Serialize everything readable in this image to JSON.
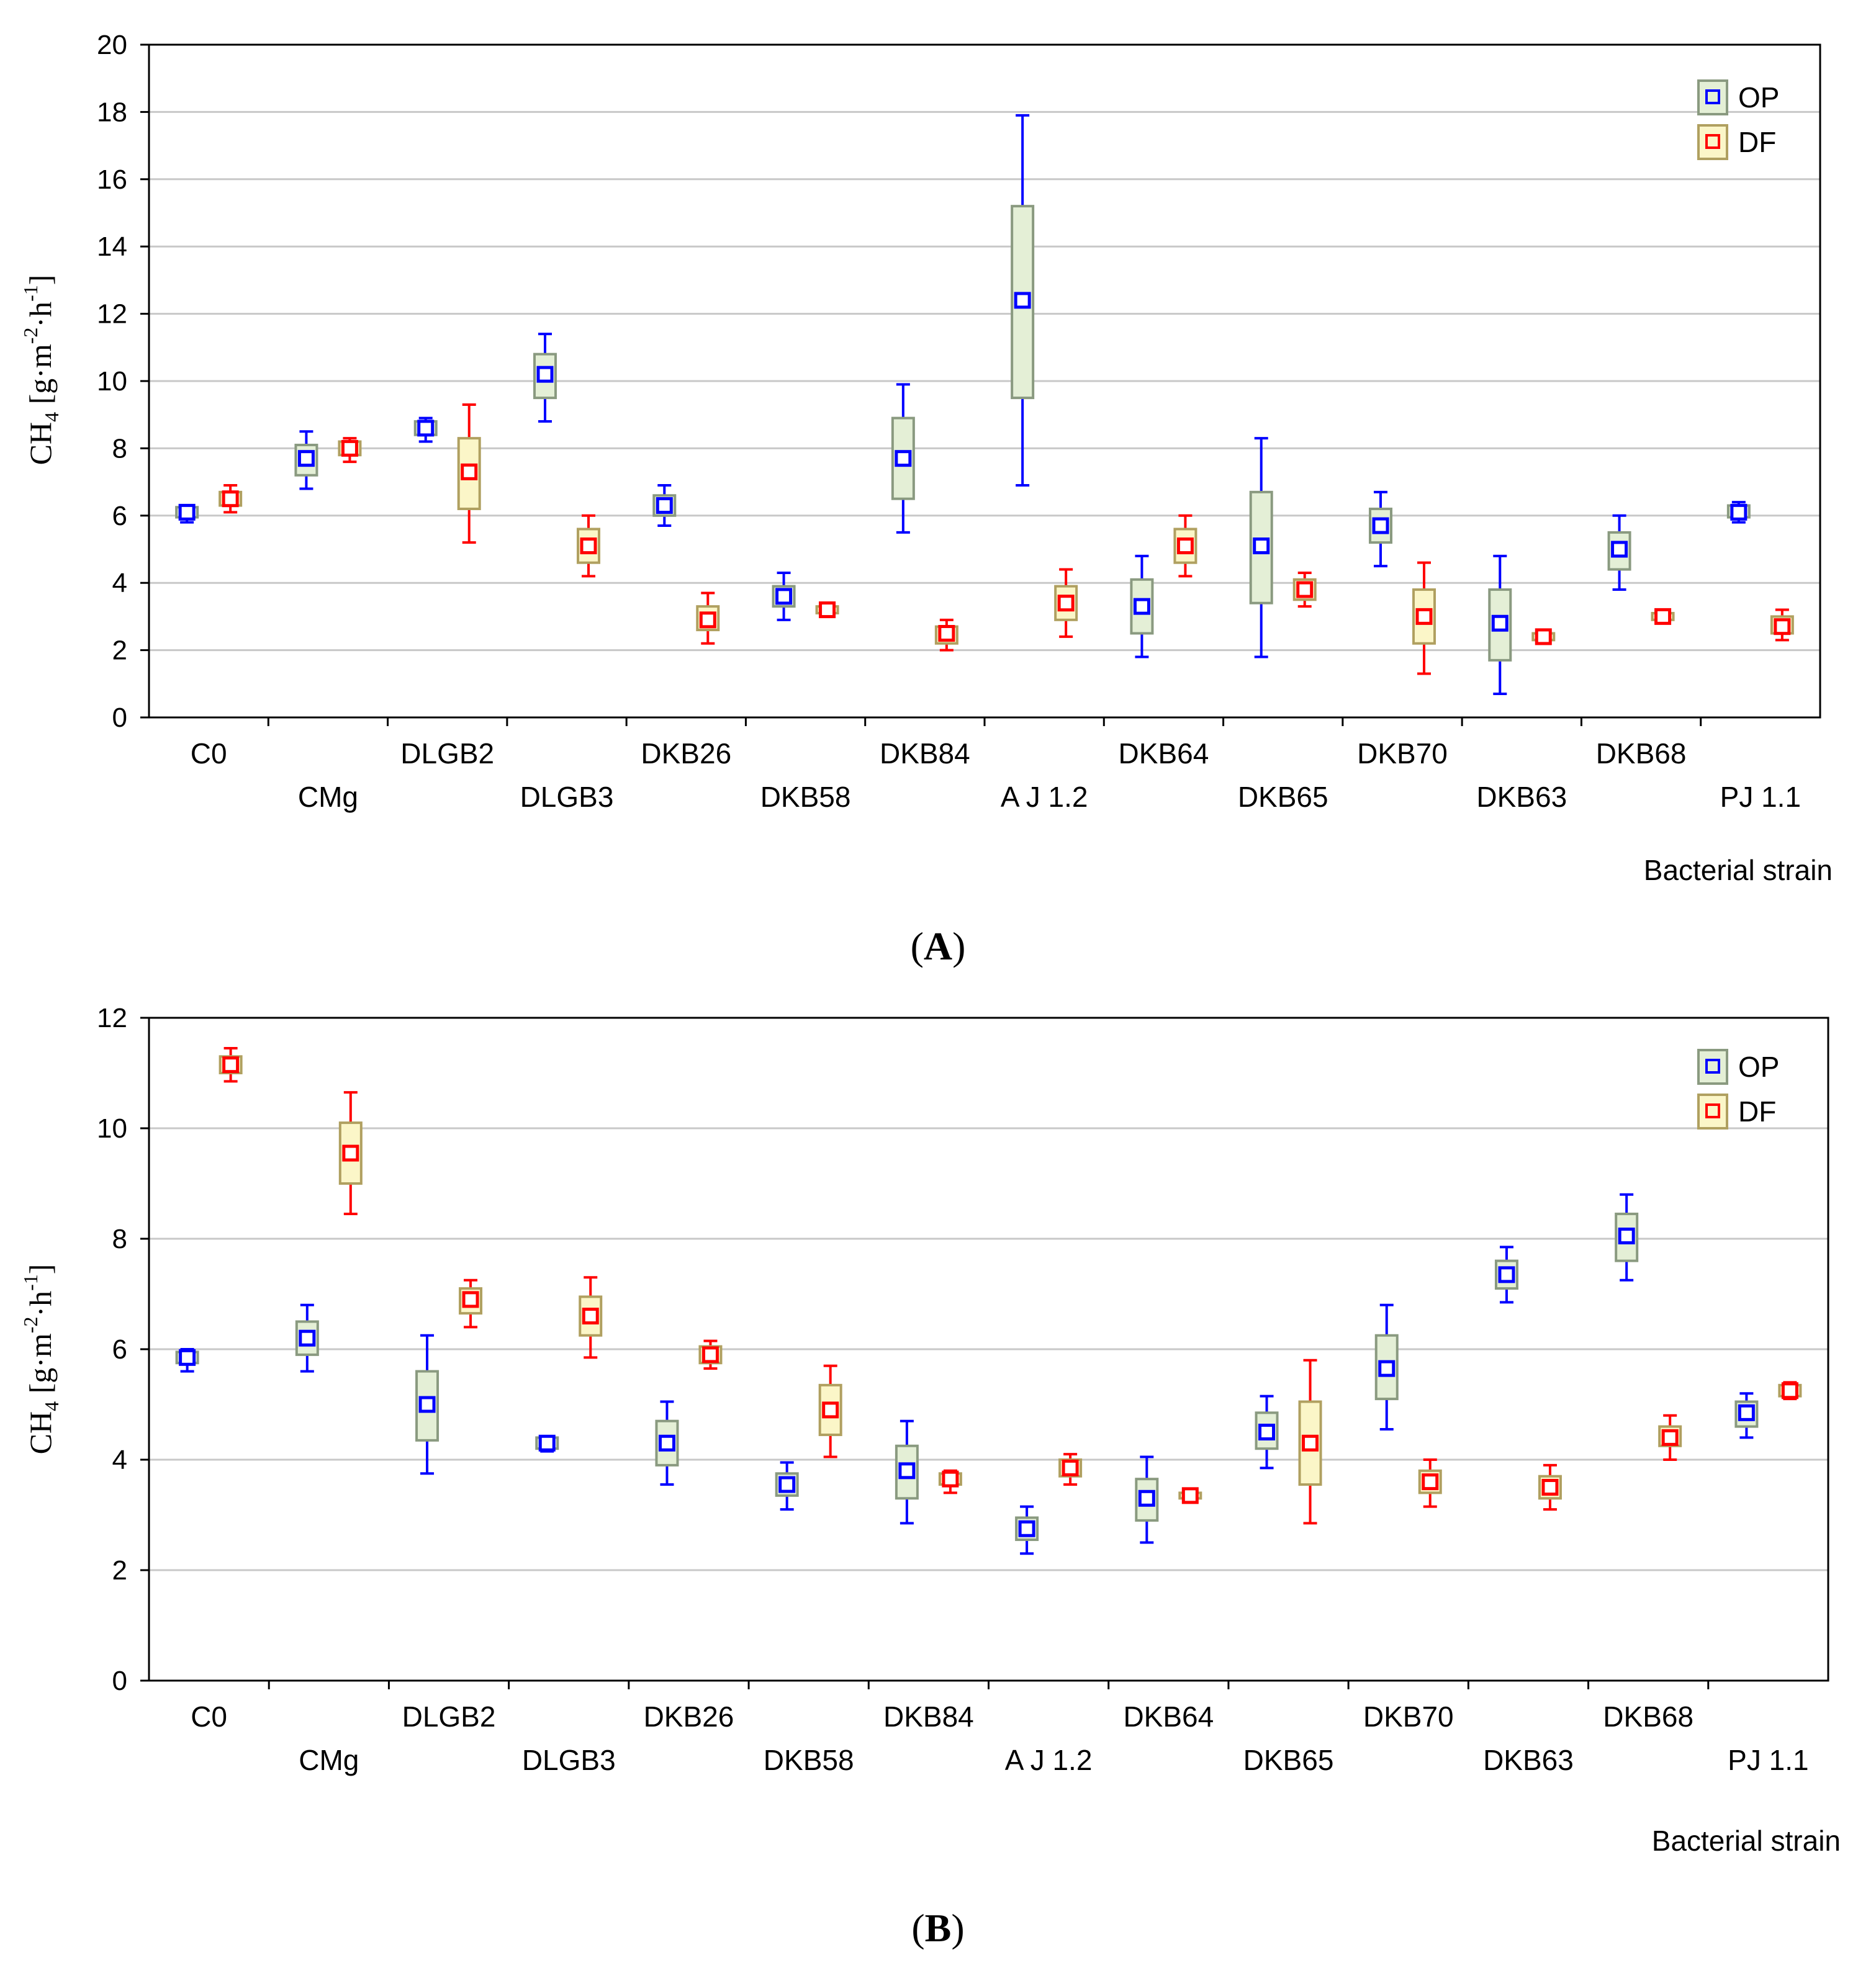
{
  "figure": {
    "panels": [
      {
        "label_open": "(",
        "label_letter": "A",
        "label_close": ")"
      },
      {
        "label_open": "(",
        "label_letter": "B",
        "label_close": ")"
      }
    ]
  },
  "legend": {
    "op": {
      "label": "OP",
      "color": "#0000ff",
      "box_fill": "#e4efd6",
      "box_stroke": "#8a9a80"
    },
    "df": {
      "label": "DF",
      "color": "#ff0000",
      "box_fill": "#fbf6c8",
      "box_stroke": "#b0a060"
    }
  },
  "chart_data": [
    {
      "type": "box",
      "panel": "A",
      "ylabel": "CH4 [g·m-2·h-1]",
      "ylabel_main": "CH",
      "ylabel_sub": "4",
      "ylabel_rest1": " [g·m",
      "ylabel_sup1": "-2",
      "ylabel_rest2": "·h",
      "ylabel_sup2": "-1",
      "ylabel_rest3": "]",
      "xlabel": "Bacterial strain",
      "ylim": [
        0,
        20
      ],
      "yticks": [
        "0",
        "2",
        "4",
        "6",
        "8",
        "10",
        "12",
        "14",
        "16",
        "18",
        "20"
      ],
      "grid": true,
      "legend_position": "top-right",
      "categories": [
        "C0",
        "CMg",
        "DLGB2",
        "DLGB3",
        "DKB26",
        "DKB58",
        "DKB84",
        "A J 1.2",
        "DKB64",
        "DKB65",
        "DKB70",
        "DKB63",
        "DKB68",
        "PJ 1.1"
      ],
      "series": [
        {
          "name": "OP",
          "points": [
            {
              "x": 0,
              "mean": 6.1,
              "q1": 5.95,
              "q3": 6.25,
              "min": 5.8,
              "max": 6.3
            },
            {
              "x": 1,
              "mean": 7.7,
              "q1": 7.2,
              "q3": 8.1,
              "min": 6.8,
              "max": 8.5
            },
            {
              "x": 2,
              "mean": 8.6,
              "q1": 8.4,
              "q3": 8.8,
              "min": 8.2,
              "max": 8.9
            },
            {
              "x": 3,
              "mean": 10.2,
              "q1": 9.5,
              "q3": 10.8,
              "min": 8.8,
              "max": 11.4
            },
            {
              "x": 4,
              "mean": 6.3,
              "q1": 6.0,
              "q3": 6.6,
              "min": 5.7,
              "max": 6.9
            },
            {
              "x": 5,
              "mean": 3.6,
              "q1": 3.3,
              "q3": 3.9,
              "min": 2.9,
              "max": 4.3
            },
            {
              "x": 6,
              "mean": 7.7,
              "q1": 6.5,
              "q3": 8.9,
              "min": 5.5,
              "max": 9.9
            },
            {
              "x": 7,
              "mean": 12.4,
              "q1": 9.5,
              "q3": 15.2,
              "min": 6.9,
              "max": 17.9
            },
            {
              "x": 8,
              "mean": 3.3,
              "q1": 2.5,
              "q3": 4.1,
              "min": 1.8,
              "max": 4.8
            },
            {
              "x": 9,
              "mean": 5.1,
              "q1": 3.4,
              "q3": 6.7,
              "min": 1.8,
              "max": 8.3
            },
            {
              "x": 10,
              "mean": 5.7,
              "q1": 5.2,
              "q3": 6.2,
              "min": 4.5,
              "max": 6.7
            },
            {
              "x": 11,
              "mean": 2.8,
              "q1": 1.7,
              "q3": 3.8,
              "min": 0.7,
              "max": 4.8
            },
            {
              "x": 12,
              "mean": 5.0,
              "q1": 4.4,
              "q3": 5.5,
              "min": 3.8,
              "max": 6.0
            },
            {
              "x": 13,
              "mean": 6.1,
              "q1": 5.95,
              "q3": 6.3,
              "min": 5.8,
              "max": 6.4
            }
          ]
        },
        {
          "name": "DF",
          "points": [
            {
              "x": 0,
              "mean": 6.5,
              "q1": 6.3,
              "q3": 6.7,
              "min": 6.1,
              "max": 6.9
            },
            {
              "x": 1,
              "mean": 8.0,
              "q1": 7.8,
              "q3": 8.2,
              "min": 7.6,
              "max": 8.3
            },
            {
              "x": 2,
              "mean": 7.3,
              "q1": 6.2,
              "q3": 8.3,
              "min": 5.2,
              "max": 9.3
            },
            {
              "x": 3,
              "mean": 5.1,
              "q1": 4.6,
              "q3": 5.6,
              "min": 4.2,
              "max": 6.0
            },
            {
              "x": 4,
              "mean": 2.9,
              "q1": 2.6,
              "q3": 3.3,
              "min": 2.2,
              "max": 3.7
            },
            {
              "x": 5,
              "mean": 3.2,
              "q1": 3.1,
              "q3": 3.3,
              "min": 3.1,
              "max": 3.3
            },
            {
              "x": 6,
              "mean": 2.5,
              "q1": 2.2,
              "q3": 2.7,
              "min": 2.0,
              "max": 2.9
            },
            {
              "x": 7,
              "mean": 3.4,
              "q1": 2.9,
              "q3": 3.9,
              "min": 2.4,
              "max": 4.4
            },
            {
              "x": 8,
              "mean": 5.1,
              "q1": 4.6,
              "q3": 5.6,
              "min": 4.2,
              "max": 6.0
            },
            {
              "x": 9,
              "mean": 3.8,
              "q1": 3.5,
              "q3": 4.1,
              "min": 3.3,
              "max": 4.3
            },
            {
              "x": 10,
              "mean": 3.0,
              "q1": 2.2,
              "q3": 3.8,
              "min": 1.3,
              "max": 4.6
            },
            {
              "x": 11,
              "mean": 2.4,
              "q1": 2.3,
              "q3": 2.5,
              "min": 2.3,
              "max": 2.5
            },
            {
              "x": 12,
              "mean": 3.0,
              "q1": 2.9,
              "q3": 3.1,
              "min": 2.9,
              "max": 3.1
            },
            {
              "x": 13,
              "mean": 2.7,
              "q1": 2.5,
              "q3": 3.0,
              "min": 2.3,
              "max": 3.2
            }
          ]
        }
      ]
    },
    {
      "type": "box",
      "panel": "B",
      "ylabel": "CH4 [g·m-2·h-1]",
      "ylabel_main": "CH",
      "ylabel_sub": "4",
      "ylabel_rest1": " [g·m",
      "ylabel_sup1": "-2",
      "ylabel_rest2": "·h",
      "ylabel_sup2": "-1",
      "ylabel_rest3": "]",
      "xlabel": "Bacterial strain",
      "ylim": [
        0,
        12
      ],
      "yticks": [
        "0",
        "2",
        "4",
        "6",
        "8",
        "10",
        "12"
      ],
      "grid": true,
      "legend_position": "top-right",
      "categories": [
        "C0",
        "CMg",
        "DLGB2",
        "DLGB3",
        "DKB26",
        "DKB58",
        "DKB84",
        "A J 1.2",
        "DKB64",
        "DKB65",
        "DKB70",
        "DKB63",
        "DKB68",
        "PJ 1.1"
      ],
      "series": [
        {
          "name": "OP",
          "points": [
            {
              "x": 0,
              "mean": 5.85,
              "q1": 5.75,
              "q3": 5.95,
              "min": 5.6,
              "max": 6.0
            },
            {
              "x": 1,
              "mean": 6.2,
              "q1": 5.9,
              "q3": 6.5,
              "min": 5.6,
              "max": 6.8
            },
            {
              "x": 2,
              "mean": 5.0,
              "q1": 4.35,
              "q3": 5.6,
              "min": 3.75,
              "max": 6.25
            },
            {
              "x": 3,
              "mean": 4.3,
              "q1": 4.2,
              "q3": 4.4,
              "min": 4.15,
              "max": 4.4
            },
            {
              "x": 4,
              "mean": 4.3,
              "q1": 3.9,
              "q3": 4.7,
              "min": 3.55,
              "max": 5.05
            },
            {
              "x": 5,
              "mean": 3.55,
              "q1": 3.35,
              "q3": 3.75,
              "min": 3.1,
              "max": 3.95
            },
            {
              "x": 6,
              "mean": 3.8,
              "q1": 3.3,
              "q3": 4.25,
              "min": 2.85,
              "max": 4.7
            },
            {
              "x": 7,
              "mean": 2.75,
              "q1": 2.55,
              "q3": 2.95,
              "min": 2.3,
              "max": 3.15
            },
            {
              "x": 8,
              "mean": 3.3,
              "q1": 2.9,
              "q3": 3.65,
              "min": 2.5,
              "max": 4.05
            },
            {
              "x": 9,
              "mean": 4.5,
              "q1": 4.2,
              "q3": 4.85,
              "min": 3.85,
              "max": 5.15
            },
            {
              "x": 10,
              "mean": 5.65,
              "q1": 5.1,
              "q3": 6.25,
              "min": 4.55,
              "max": 6.8
            },
            {
              "x": 11,
              "mean": 7.35,
              "q1": 7.1,
              "q3": 7.6,
              "min": 6.85,
              "max": 7.85
            },
            {
              "x": 12,
              "mean": 8.05,
              "q1": 7.6,
              "q3": 8.45,
              "min": 7.25,
              "max": 8.8
            },
            {
              "x": 13,
              "mean": 4.85,
              "q1": 4.6,
              "q3": 5.05,
              "min": 4.4,
              "max": 5.2
            }
          ]
        },
        {
          "name": "DF",
          "points": [
            {
              "x": 0,
              "mean": 11.15,
              "q1": 11.0,
              "q3": 11.3,
              "min": 10.85,
              "max": 11.45
            },
            {
              "x": 1,
              "mean": 9.55,
              "q1": 9.0,
              "q3": 10.1,
              "min": 8.45,
              "max": 10.65
            },
            {
              "x": 2,
              "mean": 6.9,
              "q1": 6.65,
              "q3": 7.1,
              "min": 6.4,
              "max": 7.25
            },
            {
              "x": 3,
              "mean": 6.6,
              "q1": 6.25,
              "q3": 6.95,
              "min": 5.85,
              "max": 7.3
            },
            {
              "x": 4,
              "mean": 5.9,
              "q1": 5.75,
              "q3": 6.05,
              "min": 5.65,
              "max": 6.15
            },
            {
              "x": 5,
              "mean": 4.9,
              "q1": 4.45,
              "q3": 5.35,
              "min": 4.05,
              "max": 5.7
            },
            {
              "x": 6,
              "mean": 3.65,
              "q1": 3.55,
              "q3": 3.75,
              "min": 3.4,
              "max": 3.8
            },
            {
              "x": 7,
              "mean": 3.85,
              "q1": 3.7,
              "q3": 4.0,
              "min": 3.55,
              "max": 4.1
            },
            {
              "x": 8,
              "mean": 3.35,
              "q1": 3.3,
              "q3": 3.4,
              "min": 3.3,
              "max": 3.4
            },
            {
              "x": 9,
              "mean": 4.3,
              "q1": 3.55,
              "q3": 5.05,
              "min": 2.85,
              "max": 5.8
            },
            {
              "x": 10,
              "mean": 3.6,
              "q1": 3.4,
              "q3": 3.8,
              "min": 3.15,
              "max": 4.0
            },
            {
              "x": 11,
              "mean": 3.5,
              "q1": 3.3,
              "q3": 3.7,
              "min": 3.1,
              "max": 3.9
            },
            {
              "x": 12,
              "mean": 4.4,
              "q1": 4.25,
              "q3": 4.6,
              "min": 4.0,
              "max": 4.8
            },
            {
              "x": 13,
              "mean": 5.25,
              "q1": 5.15,
              "q3": 5.35,
              "min": 5.1,
              "max": 5.4
            }
          ]
        }
      ]
    }
  ]
}
